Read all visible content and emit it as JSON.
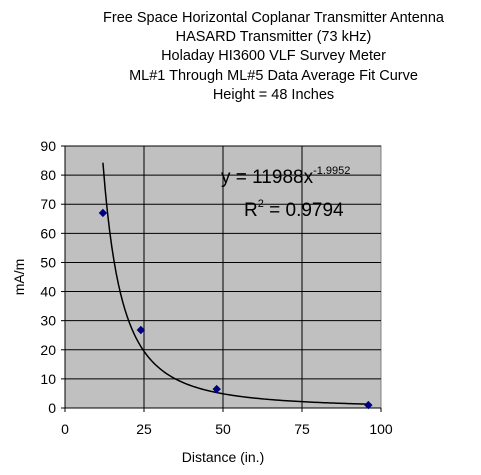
{
  "chart_data": {
    "type": "scatter",
    "title_lines": [
      "Free Space Horizontal Coplanar Transmitter Antenna",
      "HASARD Transmitter (73 kHz)",
      "Holaday HI3600 VLF Survey Meter",
      "ML#1 Through ML#5 Data Average Fit Curve",
      "Height = 48 Inches"
    ],
    "xlabel": "Distance (in.)",
    "ylabel": "mA/m",
    "xlim": [
      0,
      100
    ],
    "ylim": [
      0,
      90
    ],
    "xticks": [
      "0",
      "25",
      "50",
      "75",
      "100"
    ],
    "yticks": [
      "0",
      "10",
      "20",
      "30",
      "40",
      "50",
      "60",
      "70",
      "80",
      "90"
    ],
    "grid": true,
    "plot_background": "#c0c0c0",
    "series": [
      {
        "color": "#000080",
        "marker": "diamond",
        "x": [
          12,
          24,
          48,
          96
        ],
        "y": [
          67,
          26.8,
          6.5,
          1.0
        ]
      }
    ],
    "fit": {
      "type": "power",
      "coefficient": 11988,
      "exponent": -1.9952,
      "x_range": [
        12,
        96
      ],
      "color": "#000000",
      "equation_base": "y = 11988x",
      "equation_exponent": "-1.9952",
      "r2_base": "R",
      "r2_exponent": "2",
      "r2_value": " = 0.9794"
    }
  }
}
